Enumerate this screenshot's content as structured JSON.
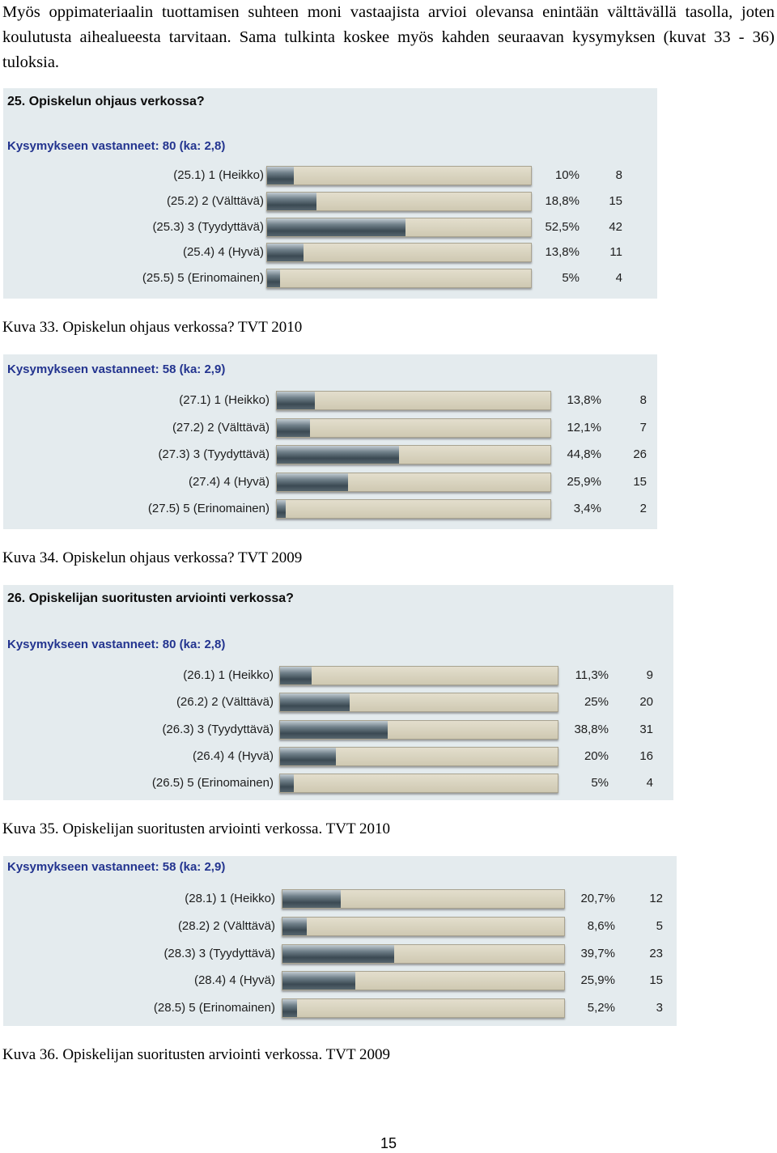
{
  "intro_text": "Myös oppimateriaalin tuottamisen suhteen moni vastaajista arvioi olevansa enintään välttävällä tasolla, joten koulutusta aihealueesta tarvitaan. Sama tulkinta koskee myös kahden seuraavan kysymyksen (kuvat 33 - 36) tuloksia.",
  "figures": [
    {
      "title": "25. Opiskelun ohjaus verkossa?",
      "respondents": "Kysymykseen vastanneet: 80 (ka: 2,8)",
      "caption": "Kuva 33. Opiskelun ohjaus verkossa? TVT 2010",
      "rows": [
        {
          "label": "(25.1) 1 (Heikko)",
          "percent_text": "10%",
          "fraction": 0.1,
          "count": "8"
        },
        {
          "label": "(25.2) 2 (Välttävä)",
          "percent_text": "18,8%",
          "fraction": 0.188,
          "count": "15"
        },
        {
          "label": "(25.3) 3 (Tyydyttävä)",
          "percent_text": "52,5%",
          "fraction": 0.525,
          "count": "42"
        },
        {
          "label": "(25.4) 4 (Hyvä)",
          "percent_text": "13,8%",
          "fraction": 0.138,
          "count": "11"
        },
        {
          "label": "(25.5) 5 (Erinomainen)",
          "percent_text": "5%",
          "fraction": 0.05,
          "count": "4"
        }
      ]
    },
    {
      "title": "",
      "respondents": "Kysymykseen vastanneet: 58 (ka: 2,9)",
      "caption": "Kuva 34. Opiskelun ohjaus verkossa? TVT 2009",
      "rows": [
        {
          "label": "(27.1) 1 (Heikko)",
          "percent_text": "13,8%",
          "fraction": 0.138,
          "count": "8"
        },
        {
          "label": "(27.2) 2 (Välttävä)",
          "percent_text": "12,1%",
          "fraction": 0.121,
          "count": "7"
        },
        {
          "label": "(27.3) 3 (Tyydyttävä)",
          "percent_text": "44,8%",
          "fraction": 0.448,
          "count": "26"
        },
        {
          "label": "(27.4) 4 (Hyvä)",
          "percent_text": "25,9%",
          "fraction": 0.259,
          "count": "15"
        },
        {
          "label": "(27.5) 5 (Erinomainen)",
          "percent_text": "3,4%",
          "fraction": 0.034,
          "count": "2"
        }
      ]
    },
    {
      "title": "26. Opiskelijan suoritusten arviointi verkossa?",
      "respondents": "Kysymykseen vastanneet: 80 (ka: 2,8)",
      "caption": "Kuva 35. Opiskelijan suoritusten arviointi verkossa. TVT 2010",
      "rows": [
        {
          "label": "(26.1) 1 (Heikko)",
          "percent_text": "11,3%",
          "fraction": 0.113,
          "count": "9"
        },
        {
          "label": "(26.2) 2 (Välttävä)",
          "percent_text": "25%",
          "fraction": 0.25,
          "count": "20"
        },
        {
          "label": "(26.3) 3 (Tyydyttävä)",
          "percent_text": "38,8%",
          "fraction": 0.388,
          "count": "31"
        },
        {
          "label": "(26.4) 4 (Hyvä)",
          "percent_text": "20%",
          "fraction": 0.2,
          "count": "16"
        },
        {
          "label": "(26.5) 5 (Erinomainen)",
          "percent_text": "5%",
          "fraction": 0.05,
          "count": "4"
        }
      ]
    },
    {
      "title": "",
      "respondents": "Kysymykseen vastanneet: 58 (ka: 2,9)",
      "caption": "Kuva 36. Opiskelijan suoritusten arviointi verkossa. TVT 2009",
      "rows": [
        {
          "label": "(28.1) 1 (Heikko)",
          "percent_text": "20,7%",
          "fraction": 0.207,
          "count": "12"
        },
        {
          "label": "(28.2) 2 (Välttävä)",
          "percent_text": "8,6%",
          "fraction": 0.086,
          "count": "5"
        },
        {
          "label": "(28.3) 3 (Tyydyttävä)",
          "percent_text": "39,7%",
          "fraction": 0.397,
          "count": "23"
        },
        {
          "label": "(28.4) 4 (Hyvä)",
          "percent_text": "25,9%",
          "fraction": 0.259,
          "count": "15"
        },
        {
          "label": "(28.5) 5 (Erinomainen)",
          "percent_text": "5,2%",
          "fraction": 0.052,
          "count": "3"
        }
      ]
    }
  ],
  "page_number": "15",
  "colors": {
    "panel_background": "#e4ebee",
    "respondents_text": "#23348f",
    "bar_track": "#d9d4c0",
    "bar_fill": "#4a5860"
  }
}
